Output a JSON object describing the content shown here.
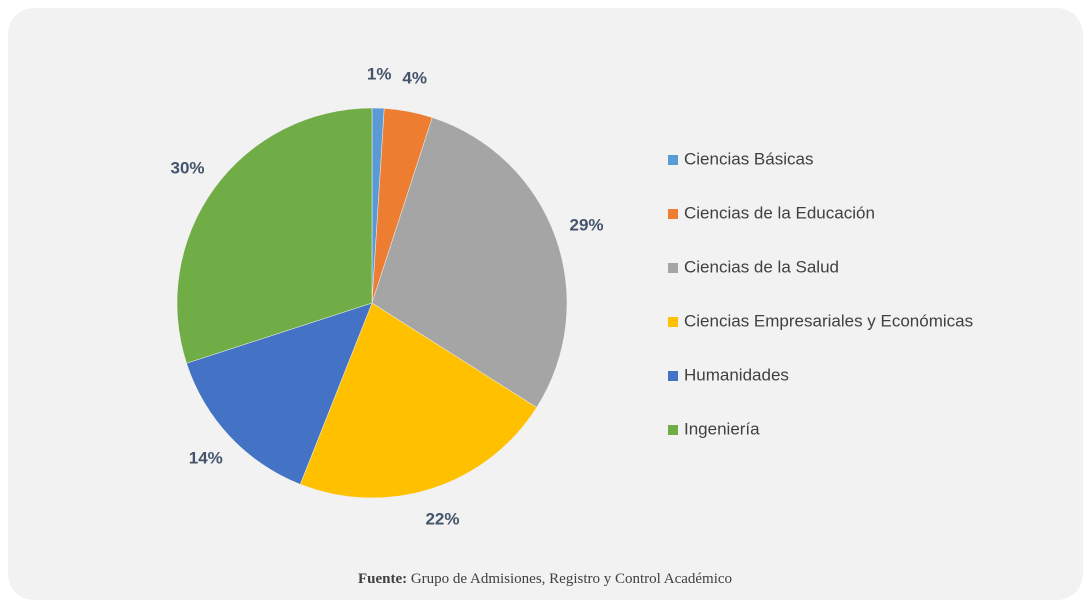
{
  "chart_data": {
    "type": "pie",
    "categories": [
      "Ciencias Básicas",
      "Ciencias de la Educación",
      "Ciencias de la Salud",
      "Ciencias Empresariales y Económicas",
      "Humanidades",
      "Ingeniería"
    ],
    "values": [
      1,
      4,
      29,
      22,
      14,
      30
    ],
    "value_labels": [
      "1%",
      "4%",
      "29%",
      "22%",
      "14%",
      "30%"
    ],
    "colors": [
      "#5b9bd5",
      "#ed7d31",
      "#a5a5a5",
      "#ffc000",
      "#4472c4",
      "#70ad47"
    ],
    "legend": "right",
    "source_label": "Fuente:",
    "source": "Grupo de Admisiones, Registro y Control Académico"
  }
}
